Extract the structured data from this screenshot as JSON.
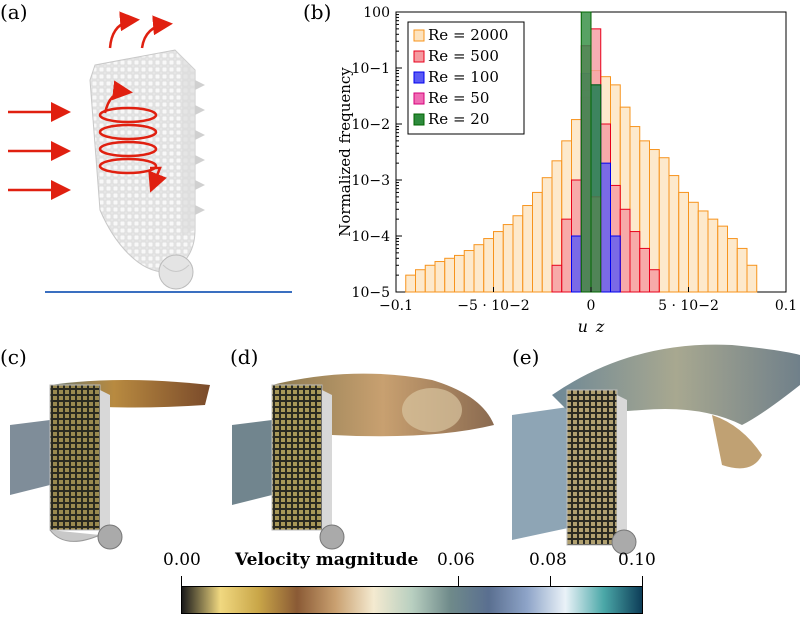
{
  "panels": {
    "a": {
      "label": "(a)"
    },
    "b": {
      "label": "(b)"
    },
    "c": {
      "label": "(c)"
    },
    "d": {
      "label": "(d)"
    },
    "e": {
      "label": "(e)"
    }
  },
  "chart_data": {
    "type": "bar",
    "subtype": "histogram",
    "title": "",
    "xlabel": "u_z",
    "ylabel": "Normalized frequency",
    "xscale": "linear",
    "yscale": "log",
    "xlim": [
      -0.1,
      0.1
    ],
    "ylim": [
      1e-05,
      1
    ],
    "x_tick_labels": [
      "−0.1",
      "−5 · 10−2",
      "0",
      "5 · 10−2",
      "0.1"
    ],
    "x_ticks": [
      -0.1,
      -0.05,
      0,
      0.05,
      0.1
    ],
    "y_tick_labels": [
      "10−5",
      "10−4",
      "10−3",
      "10−2",
      "10−1",
      "100"
    ],
    "legend_position": "top-left",
    "bin_width": 0.005,
    "series": [
      {
        "name": "Re = 2000",
        "color": "#f7941d",
        "fill": "#fde3bf",
        "bins": [
          [
            -0.0925,
            2e-05
          ],
          [
            -0.0875,
            2.5e-05
          ],
          [
            -0.0825,
            3e-05
          ],
          [
            -0.0775,
            3.5e-05
          ],
          [
            -0.0725,
            4e-05
          ],
          [
            -0.0675,
            4.5e-05
          ],
          [
            -0.0625,
            5.5e-05
          ],
          [
            -0.0575,
            7e-05
          ],
          [
            -0.0525,
            9e-05
          ],
          [
            -0.0475,
            0.00012
          ],
          [
            -0.0425,
            0.00016
          ],
          [
            -0.0375,
            0.00023
          ],
          [
            -0.0325,
            0.00035
          ],
          [
            -0.0275,
            0.0006
          ],
          [
            -0.0225,
            0.0011
          ],
          [
            -0.0175,
            0.0022
          ],
          [
            -0.0125,
            0.005
          ],
          [
            -0.0075,
            0.012
          ],
          [
            -0.0025,
            0.04
          ],
          [
            0.0025,
            0.09
          ],
          [
            0.0075,
            0.07
          ],
          [
            0.0125,
            0.05
          ],
          [
            0.0175,
            0.02
          ],
          [
            0.0225,
            0.009
          ],
          [
            0.0275,
            0.005
          ],
          [
            0.0325,
            0.0035
          ],
          [
            0.0375,
            0.0025
          ],
          [
            0.0425,
            0.0012
          ],
          [
            0.0475,
            0.0006
          ],
          [
            0.0525,
            0.0004
          ],
          [
            0.0575,
            0.00028
          ],
          [
            0.0625,
            0.0002
          ],
          [
            0.0675,
            0.00015
          ],
          [
            0.0725,
            9e-05
          ],
          [
            0.0775,
            6e-05
          ],
          [
            0.0825,
            3e-05
          ]
        ]
      },
      {
        "name": "Re = 500",
        "color": "#e8001c",
        "fill": "#f59aa0",
        "bins": [
          [
            -0.0175,
            3e-05
          ],
          [
            -0.0125,
            0.0002
          ],
          [
            -0.0075,
            0.001
          ],
          [
            -0.0025,
            0.03
          ],
          [
            0.0025,
            0.5
          ],
          [
            0.0075,
            0.01
          ],
          [
            0.0125,
            0.0008
          ],
          [
            0.0175,
            0.0003
          ],
          [
            0.0225,
            0.00012
          ],
          [
            0.0275,
            6e-05
          ],
          [
            0.0325,
            2.5e-05
          ]
        ]
      },
      {
        "name": "Re = 100",
        "color": "#0000ee",
        "fill": "#5a5af5",
        "bins": [
          [
            -0.0075,
            0.0001
          ],
          [
            -0.0025,
            0.08
          ],
          [
            0.0025,
            0.05
          ],
          [
            0.0075,
            0.002
          ],
          [
            0.0125,
            0.0001
          ]
        ]
      },
      {
        "name": "Re = 50",
        "color": "#d4007a",
        "fill": "#f06bb4",
        "bins": [
          [
            -0.0025,
            0.25
          ],
          [
            0.0025,
            0.0005
          ]
        ]
      },
      {
        "name": "Re = 20",
        "color": "#006600",
        "fill": "#2e8b3d",
        "bins": [
          [
            -0.0025,
            1.0
          ],
          [
            0.0025,
            0.05
          ]
        ]
      }
    ]
  },
  "colorbar": {
    "title": "Velocity magnitude",
    "tick_labels": [
      "0.00",
      "0.06",
      "0.08",
      "0.10"
    ],
    "ticks": [
      0.0,
      0.06,
      0.08,
      0.1
    ],
    "range": [
      0.0,
      0.1
    ],
    "stops": [
      "#1a1a1a",
      "#f0d880",
      "#c9a648",
      "#8a5a35",
      "#c9a070",
      "#f4ead0",
      "#b8cfc0",
      "#6f8a8a",
      "#5a6f90",
      "#8ea4c8",
      "#eaf2f8",
      "#4ba8a8",
      "#0d3d58"
    ]
  }
}
